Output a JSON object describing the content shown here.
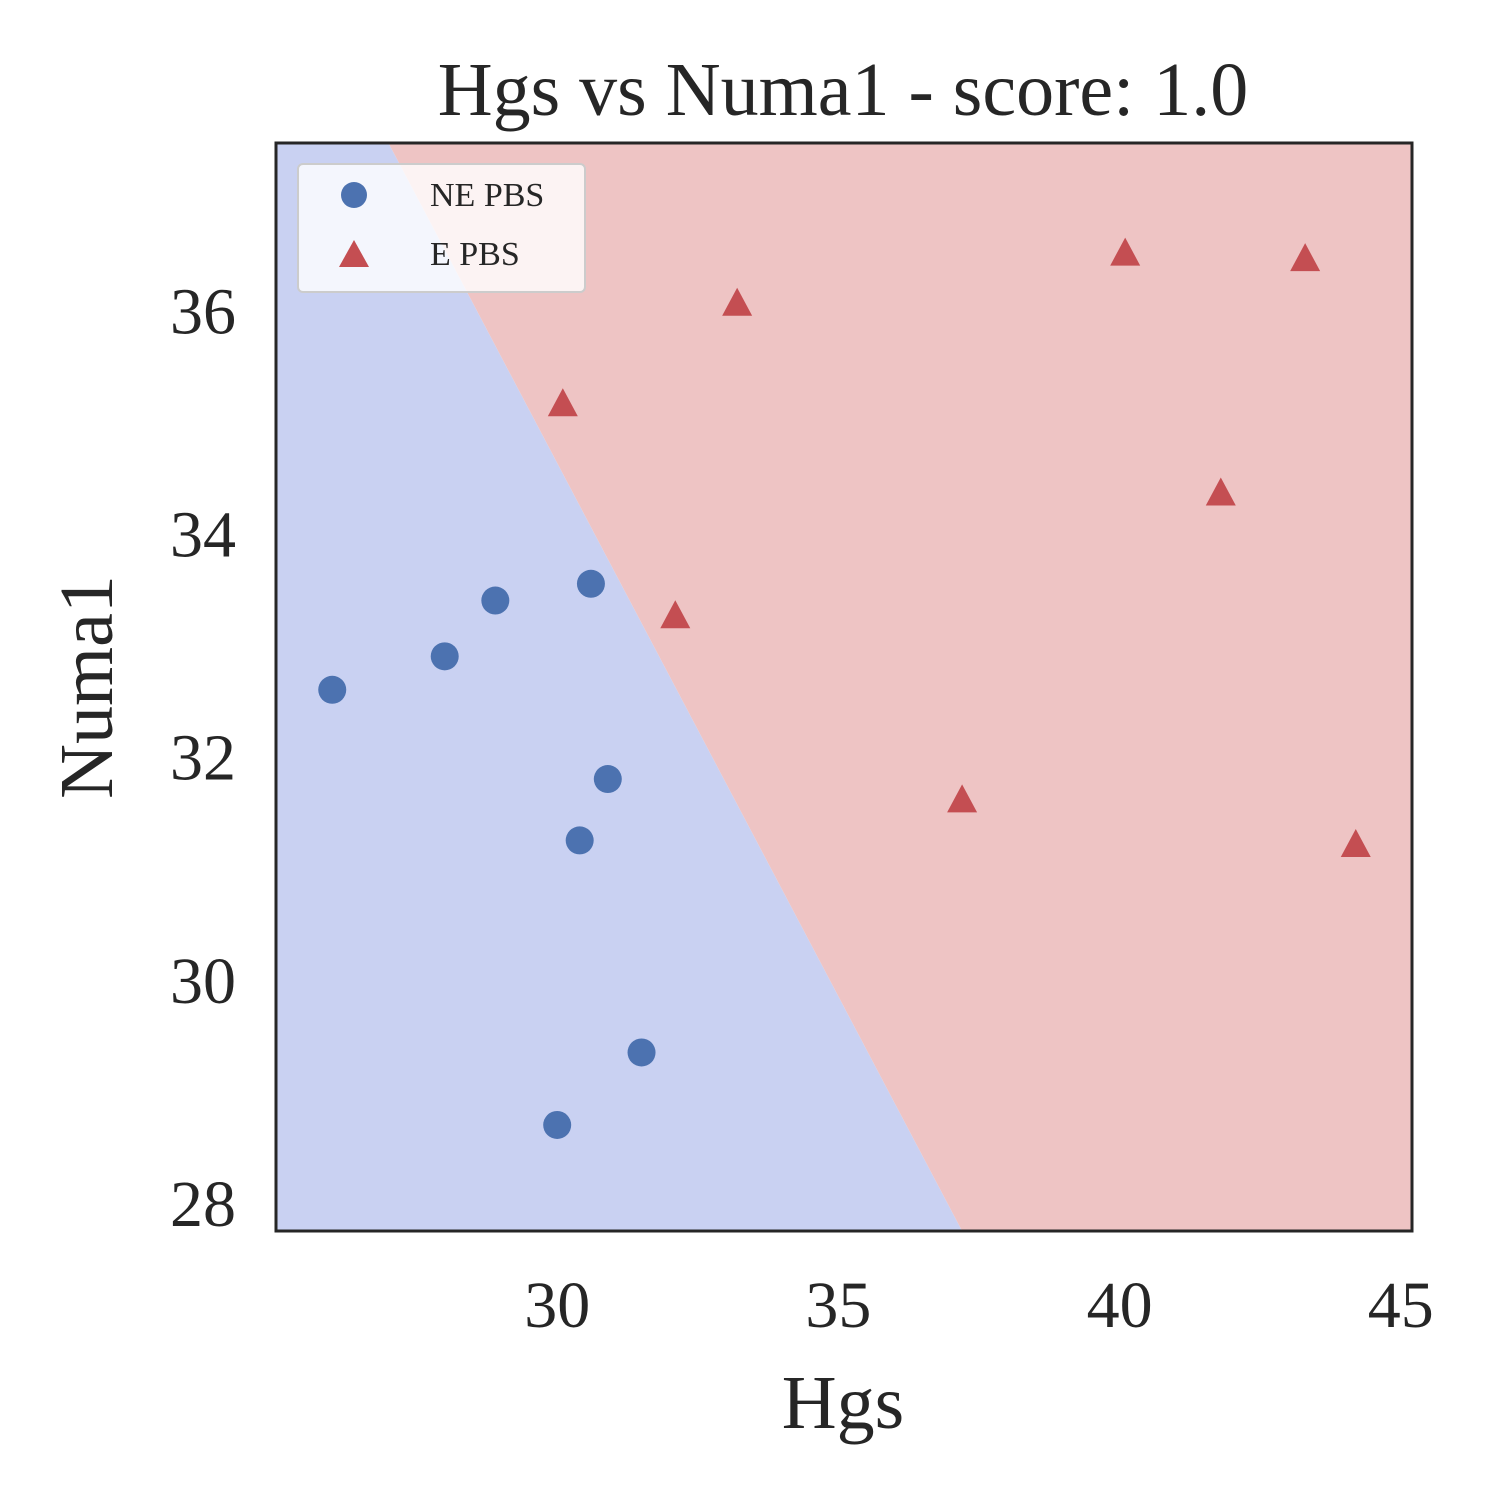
{
  "chart_data": {
    "type": "scatter",
    "title": "Hgs vs Numa1 - score: 1.0",
    "xlabel": "Hgs",
    "ylabel": "Numa1",
    "xlim": [
      25,
      45.2
    ],
    "ylim": [
      27.75,
      37.5
    ],
    "xticks": [
      30,
      35,
      40,
      45
    ],
    "yticks": [
      28,
      30,
      32,
      34,
      36
    ],
    "grid": false,
    "legend_position": "top-left",
    "decision_boundary": {
      "description": "linear classifier regions",
      "line": [
        [
          27,
          37.5
        ],
        [
          37.2,
          27.75
        ]
      ],
      "left_region_color": "#c9d1f2",
      "right_region_color": "#eec4c4"
    },
    "series": [
      {
        "name": "NE PBS",
        "marker": "circle",
        "color": "#4c72b0",
        "points": [
          [
            26.0,
            32.6
          ],
          [
            28.0,
            32.9
          ],
          [
            28.9,
            33.4
          ],
          [
            30.6,
            33.55
          ],
          [
            30.9,
            31.8
          ],
          [
            30.4,
            31.25
          ],
          [
            31.5,
            29.35
          ],
          [
            30.0,
            28.7
          ]
        ]
      },
      {
        "name": "E PBS",
        "marker": "triangle",
        "color": "#c44e52",
        "points": [
          [
            30.1,
            35.15
          ],
          [
            33.2,
            36.05
          ],
          [
            40.1,
            36.5
          ],
          [
            43.3,
            36.45
          ],
          [
            41.8,
            34.35
          ],
          [
            32.1,
            33.25
          ],
          [
            37.2,
            31.6
          ],
          [
            44.2,
            31.2
          ]
        ]
      }
    ]
  }
}
